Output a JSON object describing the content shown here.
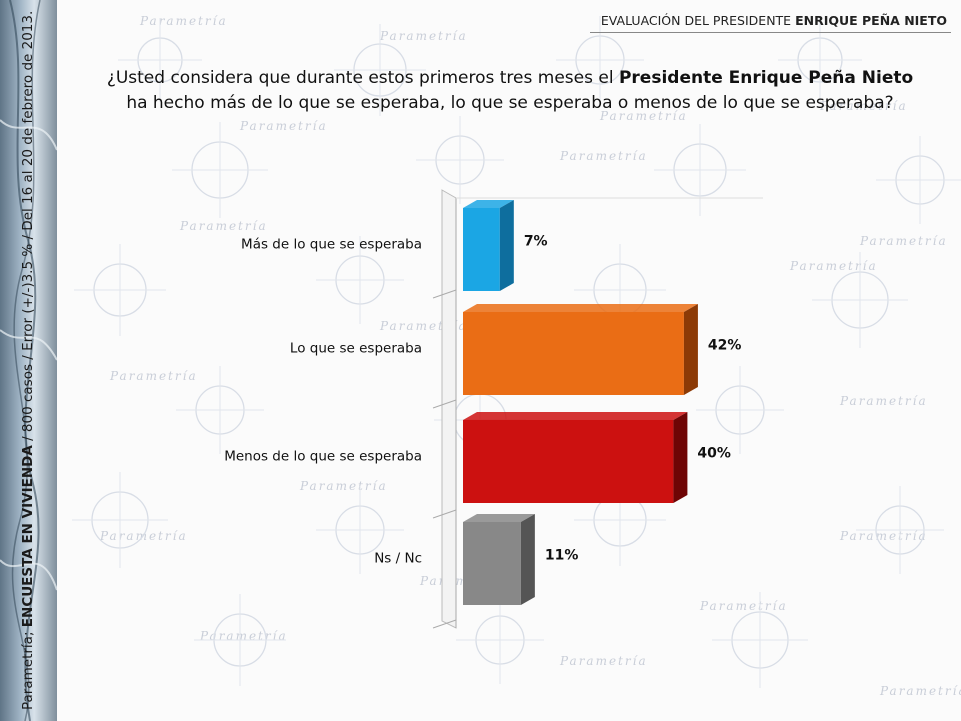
{
  "header": {
    "title_prefix": "EVALUACIÓN DEL PRESIDENTE ",
    "title_bold": "ENRIQUE PEÑA NIETO"
  },
  "question": {
    "part1": "¿Usted considera que durante estos primeros tres meses el ",
    "bold": "Presidente Enrique Peña Nieto",
    "part2": " ha hecho más de lo que se esperaba, lo que se esperaba o menos de lo que se esperaba?"
  },
  "side_caption": {
    "prefix": "Parametría; ",
    "bold": "ENCUESTA EN VIVIENDA",
    "suffix": " / 800 casos / Error (+/-)3.5 % / Del 16 al 20 de febrero de 2013."
  },
  "watermark": "Parametría",
  "chart_data": {
    "type": "bar",
    "orientation": "horizontal",
    "categories": [
      "Más de lo que se esperaba",
      "Lo que se esperaba",
      "Menos de lo que se esperaba",
      "Ns / Nc"
    ],
    "values": [
      7,
      42,
      40,
      11
    ],
    "value_labels": [
      "7%",
      "42%",
      "40%",
      "11%"
    ],
    "colors": [
      "#1ba6e4",
      "#ea6d15",
      "#cc1110",
      "#888888"
    ],
    "side_colors": [
      "#0e6e9e",
      "#8c3a06",
      "#6e0505",
      "#555555"
    ],
    "xlim": [
      0,
      50
    ],
    "grid": false,
    "legend": "none",
    "style": "3d"
  }
}
